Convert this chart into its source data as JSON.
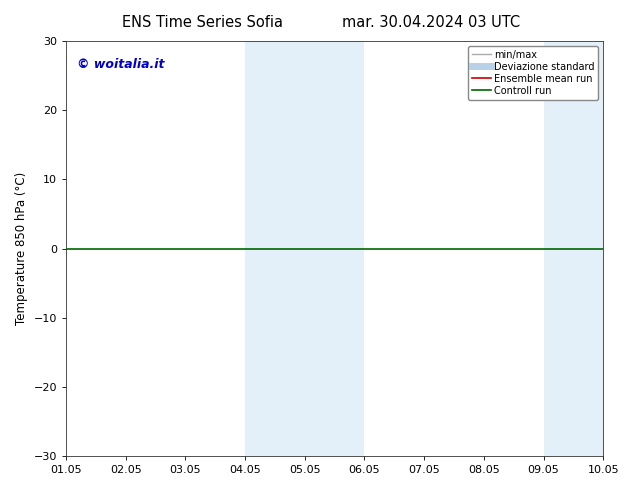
{
  "title_left": "ENS Time Series Sofia",
  "title_right": "mar. 30.04.2024 03 UTC",
  "ylabel": "Temperature 850 hPa (°C)",
  "ylim": [
    -30,
    30
  ],
  "yticks": [
    -30,
    -20,
    -10,
    0,
    10,
    20,
    30
  ],
  "xlim": [
    0,
    9
  ],
  "xtick_labels": [
    "01.05",
    "02.05",
    "03.05",
    "04.05",
    "05.05",
    "06.05",
    "07.05",
    "08.05",
    "09.05",
    "10.05"
  ],
  "xtick_positions": [
    0,
    1,
    2,
    3,
    4,
    5,
    6,
    7,
    8,
    9
  ],
  "shaded_bands": [
    {
      "x_start": 3.0,
      "x_end": 5.0
    },
    {
      "x_start": 8.0,
      "x_end": 9.0
    }
  ],
  "shade_color": "#cde4f5",
  "shade_alpha": 0.55,
  "watermark": "© woitalia.it",
  "watermark_color": "#0000cc",
  "legend_entries": [
    {
      "label": "min/max",
      "color": "#aaaaaa",
      "lw": 1.0,
      "style": "-"
    },
    {
      "label": "Deviazione standard",
      "color": "#b8d0e8",
      "lw": 5,
      "style": "-"
    },
    {
      "label": "Ensemble mean run",
      "color": "#cc0000",
      "lw": 1.2,
      "style": "-"
    },
    {
      "label": "Controll run",
      "color": "#006600",
      "lw": 1.2,
      "style": "-"
    }
  ],
  "zero_line_color": "#006600",
  "zero_line_lw": 1.2,
  "bg_color": "#ffffff",
  "border_color": "#333333",
  "title_fontsize": 10.5,
  "axis_label_fontsize": 8.5,
  "tick_fontsize": 8.0
}
